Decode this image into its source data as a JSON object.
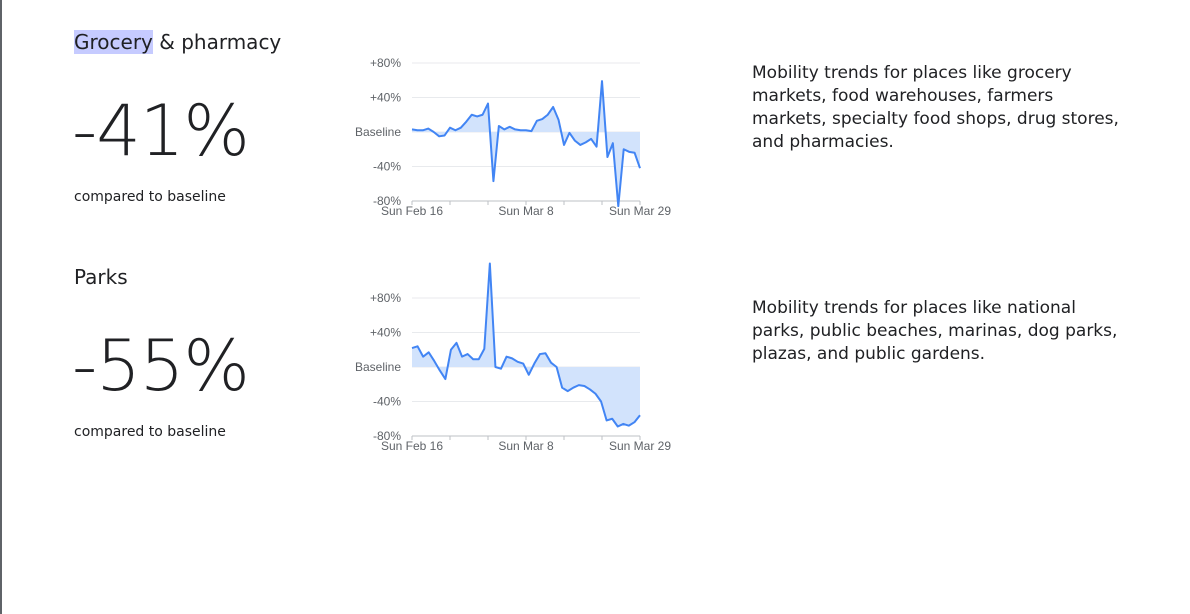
{
  "colors": {
    "line": "#4285f4",
    "fill": "#d2e3fc",
    "grid": "#e8eaed",
    "highlight": "#c6cbff"
  },
  "sections": [
    {
      "title_highlight": "Grocery",
      "title_rest": " & pharmacy",
      "value": "-41%",
      "compared": "compared to baseline",
      "description": "Mobility trends for places like grocery markets, food warehouses, farmers markets, specialty food shops, drug stores, and pharmacies.",
      "chart_data": {
        "type": "area",
        "ylim": [
          -80,
          80
        ],
        "yticks": [
          "+80%",
          "+40%",
          "Baseline",
          "-40%",
          "-80%"
        ],
        "xtick_labels": [
          "Sun Feb 16",
          "Sun Mar 8",
          "Sun Mar 29"
        ],
        "values": [
          3,
          2,
          2,
          4,
          0,
          -5,
          -4,
          5,
          2,
          5,
          12,
          20,
          18,
          20,
          33,
          -57,
          7,
          3,
          6,
          3,
          2,
          2,
          1,
          13,
          15,
          20,
          29,
          14,
          -15,
          -1,
          -10,
          -15,
          -12,
          -8,
          -17,
          59,
          -29,
          -13,
          -86,
          -20,
          -23,
          -24,
          -42
        ]
      }
    },
    {
      "title_highlight": "",
      "title_rest": "Parks",
      "value": "-55%",
      "compared": "compared to baseline",
      "description": "Mobility trends for places like national parks, public beaches, marinas, dog parks, plazas, and public gardens.",
      "chart_data": {
        "type": "area",
        "ylim": [
          -80,
          80
        ],
        "yticks": [
          "+80%",
          "+40%",
          "Baseline",
          "-40%",
          "-80%"
        ],
        "xtick_labels": [
          "Sun Feb 16",
          "Sun Mar 8",
          "Sun Mar 29"
        ],
        "values": [
          22,
          24,
          12,
          17,
          7,
          -4,
          -14,
          20,
          28,
          12,
          15,
          9,
          9,
          21,
          120,
          0,
          -2,
          12,
          10,
          6,
          4,
          -9,
          4,
          15,
          16,
          5,
          0,
          -24,
          -28,
          -24,
          -21,
          -22,
          -26,
          -31,
          -40,
          -62,
          -60,
          -69,
          -66,
          -68,
          -64,
          -56
        ]
      }
    }
  ]
}
